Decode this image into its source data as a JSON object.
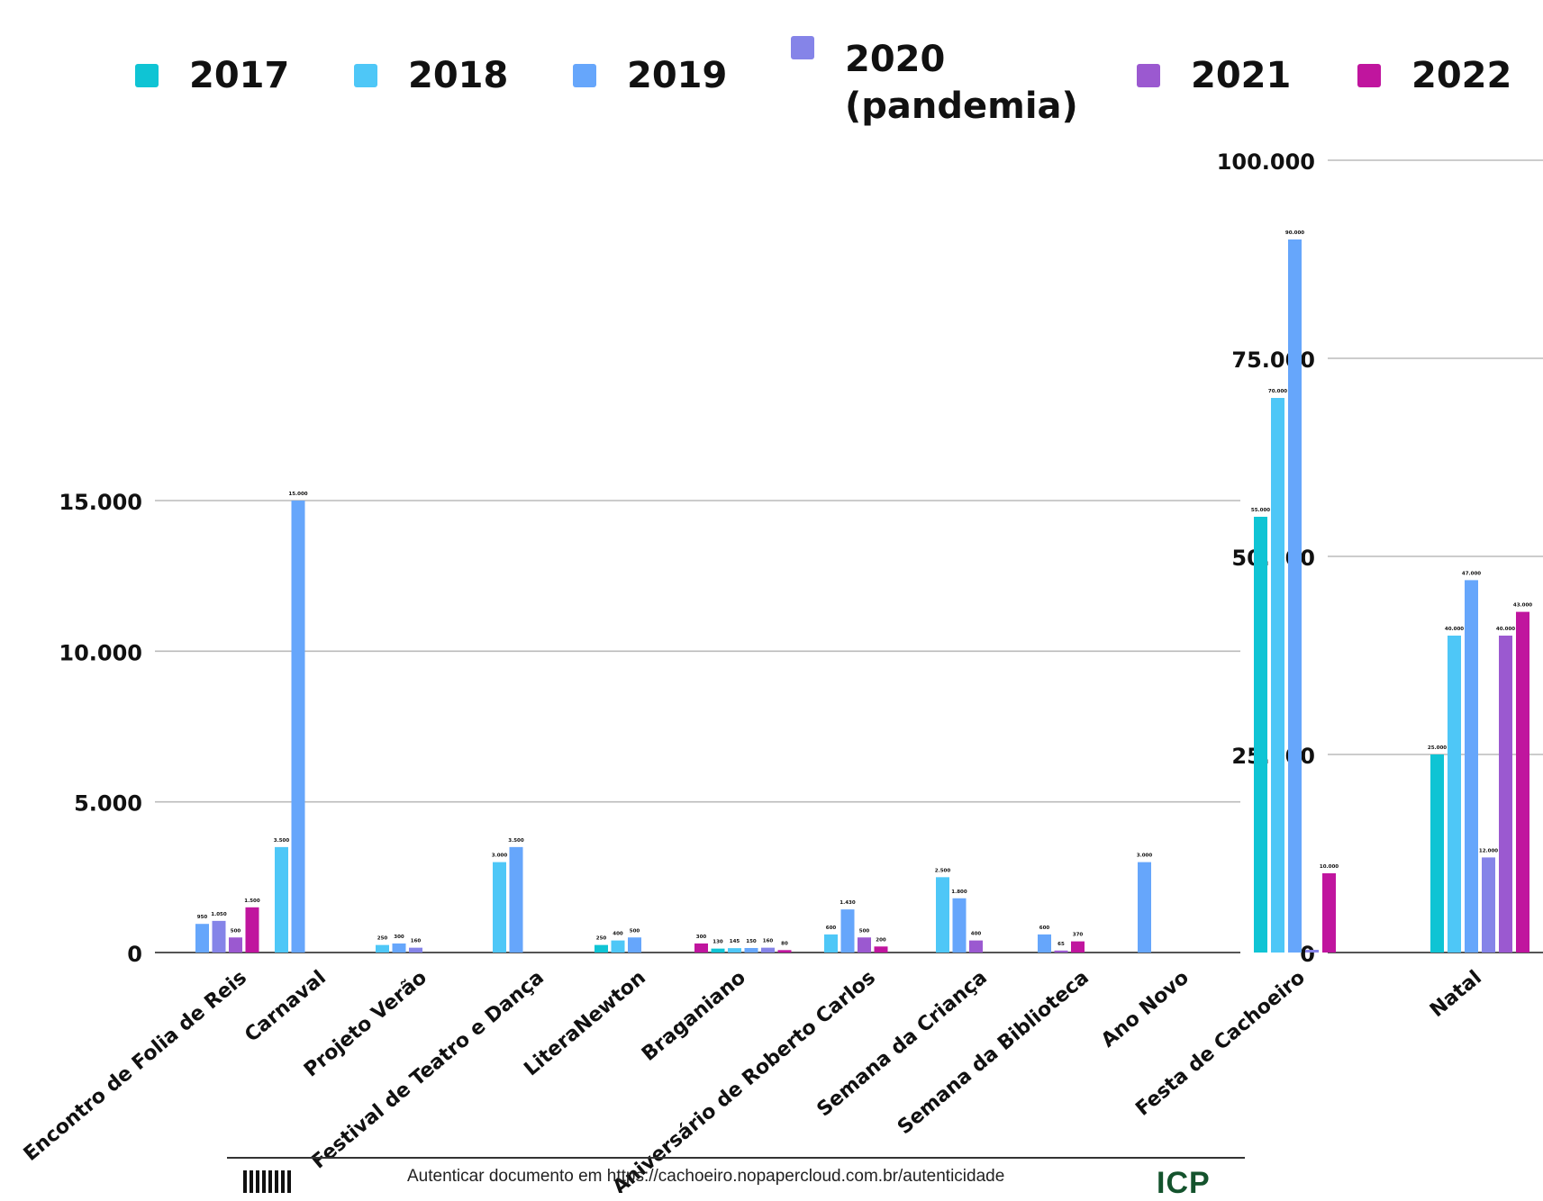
{
  "legend": [
    {
      "label": "2017",
      "color": "#0fc4d4"
    },
    {
      "label": "2018",
      "color": "#4ec7f7"
    },
    {
      "label": "2019",
      "color": "#66a6fb"
    },
    {
      "label": "2020\n(pandemia)",
      "color": "#8584e8"
    },
    {
      "label": "2021",
      "color": "#9b59d0"
    },
    {
      "label": "2022",
      "color": "#c0159e"
    }
  ],
  "chart_data": [
    {
      "type": "bar",
      "categories": [
        "Encontro de Folia de Reis",
        "Carnaval",
        "Projeto Verão",
        "Festival de Teatro e Dança",
        "LiteraNewton",
        "Braganiano",
        "Aniversário de Roberto Carlos",
        "Semana da Criança",
        "Semana da Biblioteca",
        "Ano Novo"
      ],
      "bars": [
        {
          "category": 0,
          "year": "2019",
          "value": 950,
          "label": "950"
        },
        {
          "category": 0,
          "year": "2020",
          "value": 1050,
          "label": "1.050"
        },
        {
          "category": 0,
          "year": "2021",
          "value": 500,
          "label": "500"
        },
        {
          "category": 0,
          "year": "2022",
          "value": 1500,
          "label": "1.500"
        },
        {
          "category": 1,
          "year": "2018",
          "value": 3500,
          "label": "3.500"
        },
        {
          "category": 1,
          "year": "2019",
          "value": 15000,
          "label": "15.000"
        },
        {
          "category": 2,
          "year": "2018",
          "value": 250,
          "label": "250"
        },
        {
          "category": 2,
          "year": "2019",
          "value": 300,
          "label": "300"
        },
        {
          "category": 2,
          "year": "2020",
          "value": 160,
          "label": "160"
        },
        {
          "category": 3,
          "year": "2018",
          "value": 3000,
          "label": "3.000"
        },
        {
          "category": 3,
          "year": "2019",
          "value": 3500,
          "label": "3.500"
        },
        {
          "category": 4,
          "year": "2017",
          "value": 250,
          "label": "250"
        },
        {
          "category": 4,
          "year": "2018",
          "value": 400,
          "label": "400"
        },
        {
          "category": 4,
          "year": "2019",
          "value": 500,
          "label": "500"
        },
        {
          "category": 5,
          "year": "2022",
          "value": 300,
          "label": "300"
        },
        {
          "category": 5,
          "year": "2017",
          "value": 130,
          "label": "130"
        },
        {
          "category": 5,
          "year": "2018",
          "value": 145,
          "label": "145"
        },
        {
          "category": 5,
          "year": "2019",
          "value": 150,
          "label": "150"
        },
        {
          "category": 5,
          "year": "2020",
          "value": 160,
          "label": "160"
        },
        {
          "category": 5,
          "year": "2022",
          "value": 80,
          "label": "80"
        },
        {
          "category": 6,
          "year": "2018",
          "value": 600,
          "label": "600"
        },
        {
          "category": 6,
          "year": "2019",
          "value": 1430,
          "label": "1.430"
        },
        {
          "category": 6,
          "year": "2021",
          "value": 500,
          "label": "500"
        },
        {
          "category": 6,
          "year": "2022",
          "value": 200,
          "label": "200"
        },
        {
          "category": 7,
          "year": "2018",
          "value": 2500,
          "label": "2.500"
        },
        {
          "category": 7,
          "year": "2019",
          "value": 1800,
          "label": "1.800"
        },
        {
          "category": 7,
          "year": "2021",
          "value": 400,
          "label": "400"
        },
        {
          "category": 8,
          "year": "2019",
          "value": 600,
          "label": "600"
        },
        {
          "category": 8,
          "year": "2021",
          "value": 65,
          "label": "65"
        },
        {
          "category": 8,
          "year": "2022",
          "value": 370,
          "label": "370"
        },
        {
          "category": 9,
          "year": "2019",
          "value": 3000,
          "label": "3.000"
        }
      ],
      "ylim": [
        0,
        15000
      ],
      "yticks": [
        {
          "value": 0,
          "label": "0"
        },
        {
          "value": 5000,
          "label": "5.000"
        },
        {
          "value": 10000,
          "label": "10.000"
        },
        {
          "value": 15000,
          "label": "15.000"
        }
      ],
      "grid": true
    },
    {
      "type": "bar",
      "categories": [
        "Festa de Cachoeiro",
        "Natal"
      ],
      "bars": [
        {
          "category": 0,
          "year": "2017",
          "value": 55000,
          "label": "55.000"
        },
        {
          "category": 0,
          "year": "2018",
          "value": 70000,
          "label": "70.000"
        },
        {
          "category": 0,
          "year": "2019",
          "value": 90000,
          "label": "90.000"
        },
        {
          "category": 0,
          "year": "2020",
          "value": 0,
          "label": ""
        },
        {
          "category": 0,
          "year": "2022",
          "value": 10000,
          "label": "10.000"
        },
        {
          "category": 1,
          "year": "2017",
          "value": 25000,
          "label": "25.000"
        },
        {
          "category": 1,
          "year": "2018",
          "value": 40000,
          "label": "40.000"
        },
        {
          "category": 1,
          "year": "2019",
          "value": 47000,
          "label": "47.000"
        },
        {
          "category": 1,
          "year": "2020",
          "value": 12000,
          "label": "12.000"
        },
        {
          "category": 1,
          "year": "2021",
          "value": 40000,
          "label": "40.000"
        },
        {
          "category": 1,
          "year": "2022",
          "value": 43000,
          "label": "43.000"
        }
      ],
      "ylim": [
        0,
        100000
      ],
      "yticks": [
        {
          "value": 0,
          "label": "0"
        },
        {
          "value": 25000,
          "label": "25.000"
        },
        {
          "value": 50000,
          "label": "50.000"
        },
        {
          "value": 75000,
          "label": "75.000"
        },
        {
          "value": 100000,
          "label": "100.000"
        }
      ],
      "grid": true
    }
  ],
  "footer": {
    "text": "Autenticar documento em https://cachoeiro.nopapercloud.com.br/autenticidade",
    "logo": "ICP"
  }
}
